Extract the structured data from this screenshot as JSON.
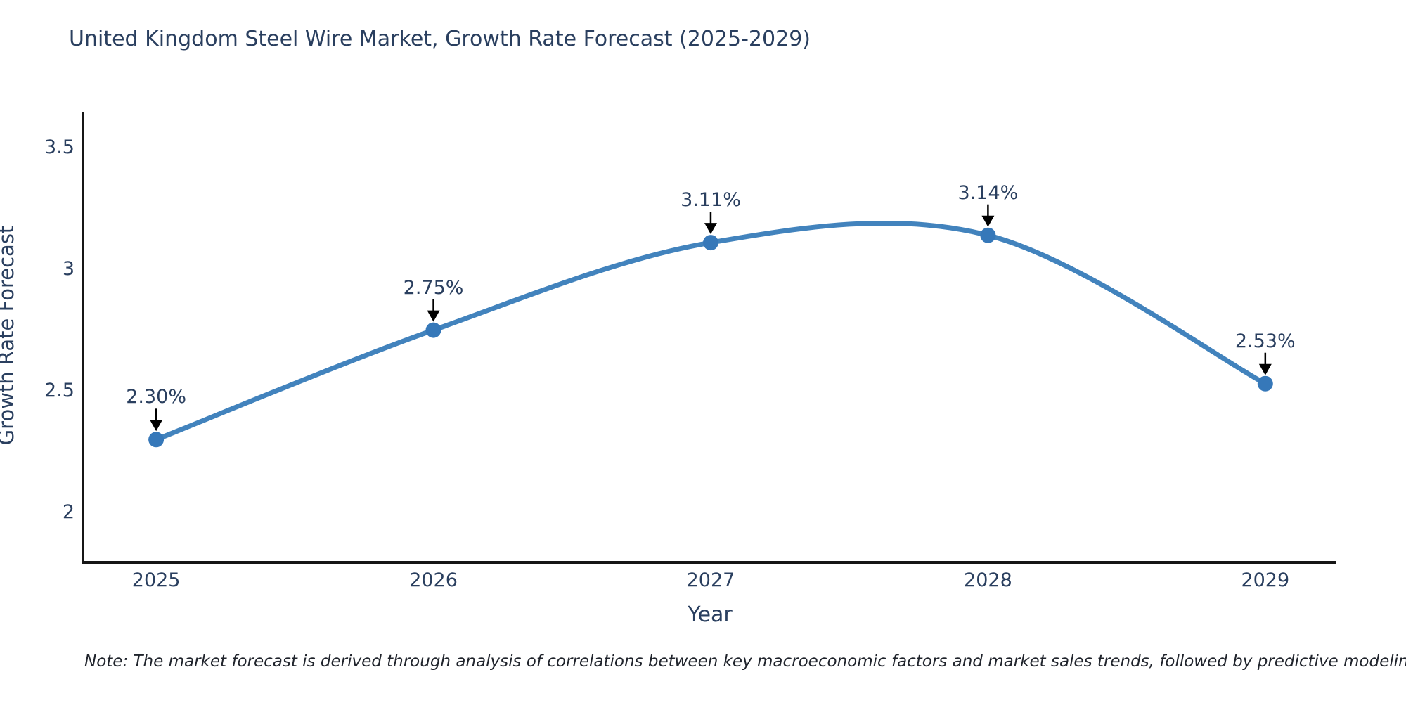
{
  "title": "United Kingdom Steel Wire Market, Growth Rate Forecast (2025-2029)",
  "note": "Note: The market forecast is derived through analysis of correlations between key macroeconomic factors and market sales trends, followed by predictive modeling to project future sales",
  "axes": {
    "x": {
      "title": "Year",
      "tick_labels": [
        "2025",
        "2026",
        "2027",
        "2028",
        "2029"
      ]
    },
    "y": {
      "title": "Growth Rate Forecast",
      "tick_labels": [
        "3.5",
        "3",
        "2.5",
        "2"
      ]
    }
  },
  "colors": {
    "line": "#4283bd",
    "marker": "#3678b9",
    "axis_line": "#161616",
    "text": "#2a3f5f",
    "arrow": "#000000"
  },
  "chart_data": {
    "type": "line",
    "line_shape": "spline",
    "x": [
      2025,
      2026,
      2027,
      2028,
      2029
    ],
    "values": [
      2.3,
      2.75,
      3.11,
      3.14,
      2.53
    ],
    "point_labels": [
      "2.30%",
      "2.75%",
      "3.11%",
      "3.14%",
      "2.53%"
    ],
    "title": "United Kingdom Steel Wire Market, Growth Rate Forecast (2025-2029)",
    "xlabel": "Year",
    "ylabel": "Growth Rate Forecast",
    "xticks": [
      2025,
      2026,
      2027,
      2028,
      2029
    ],
    "yticks": [
      3.5,
      3,
      2.5,
      2
    ],
    "xlim": [
      2024.736,
      2029.254
    ],
    "ylim": [
      1.795,
      3.645
    ],
    "grid": false,
    "legend": false,
    "markers": true,
    "annotations_arrows": true
  }
}
